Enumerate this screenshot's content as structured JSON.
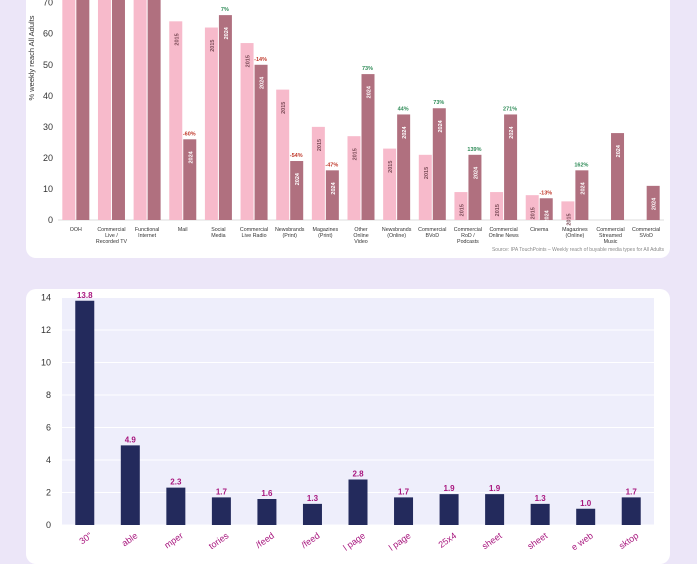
{
  "chart_data": [
    {
      "type": "bar",
      "ylabel": "% weekly reach All Adults",
      "ylim": [
        0,
        75
      ],
      "yticks": [
        0,
        10,
        20,
        30,
        40,
        50,
        60,
        70
      ],
      "categories": [
        "OOH",
        "Commercial Live / Recorded TV",
        "Functional Internet",
        "Mail",
        "Social Media",
        "Commercial Live Radio",
        "Newsbrands (Print)",
        "Magazines (Print)",
        "Other Online Video",
        "Newsbrands (Online)",
        "Commercial BVoD",
        "Commercial RoD / Podcasts",
        "Commercial Online News",
        "Cinema",
        "Magazines (Online)",
        "Commercial Streamed Music",
        "Commercial SVoD"
      ],
      "series": [
        {
          "name": "2015",
          "color": "#F7BACB",
          "values": [
            75,
            75,
            75,
            64,
            62,
            57,
            42,
            30,
            27,
            23,
            21,
            9,
            9,
            8,
            6,
            null,
            null
          ]
        },
        {
          "name": "2024",
          "color": "#B0707F",
          "values": [
            75,
            75,
            75,
            26,
            66,
            50,
            19,
            16,
            47,
            34,
            36,
            21,
            34,
            7,
            16,
            28,
            11
          ]
        }
      ],
      "changes": [
        "",
        "",
        "",
        "-60%",
        "7%",
        "-14%",
        "-54%",
        "-47%",
        "73%",
        "44%",
        "73%",
        "139%",
        "271%",
        "-13%",
        "162%",
        "",
        ""
      ],
      "change_colors": {
        "up": "#2E8B57",
        "down": "#C0392B"
      },
      "source": "Source: IPA TouchPoints – Weekly reach of buyable media types for All Adults"
    },
    {
      "type": "bar",
      "ylim": [
        0,
        14.5
      ],
      "yticks": [
        0,
        2,
        4,
        6,
        8,
        10,
        12,
        14
      ],
      "categories": [
        "30\"",
        "able",
        "mper",
        "tories",
        "/feed",
        "/feed",
        "l page",
        "l page",
        "25x4",
        "sheet",
        "sheet",
        "e web",
        "sktop"
      ],
      "values": [
        13.8,
        4.9,
        2.3,
        1.7,
        1.6,
        1.3,
        2.8,
        1.7,
        1.9,
        1.9,
        1.3,
        1.0,
        1.7
      ],
      "labels": [
        "13.8",
        "4.9",
        "2.3",
        "1.7",
        "1.6",
        "1.3",
        "2.8",
        "1.7",
        "1.9",
        "1.9",
        "1.3",
        "1.0",
        "1.7"
      ],
      "bar_color": "#232A5C",
      "label_color": "#A8167E"
    }
  ]
}
